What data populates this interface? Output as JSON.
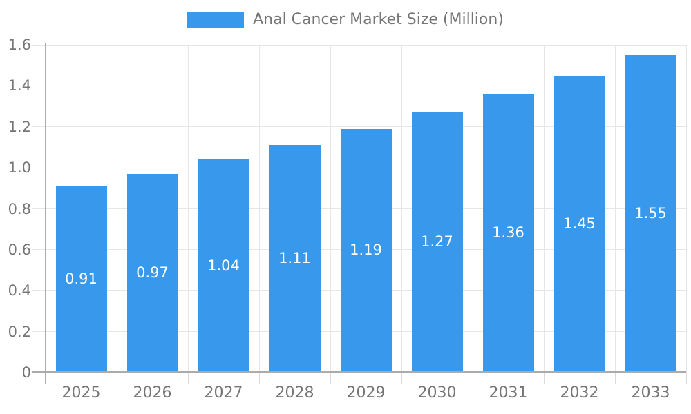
{
  "chart_data": {
    "type": "bar",
    "title": "Anal Cancer Market Size (Million)",
    "categories": [
      "2025",
      "2026",
      "2027",
      "2028",
      "2029",
      "2030",
      "2031",
      "2032",
      "2033"
    ],
    "values": [
      0.91,
      0.97,
      1.04,
      1.11,
      1.19,
      1.27,
      1.36,
      1.45,
      1.55
    ],
    "value_labels": [
      "0.91",
      "0.97",
      "1.04",
      "1.11",
      "1.19",
      "1.27",
      "1.36",
      "1.45",
      "1.55"
    ],
    "xlabel": "",
    "ylabel": "",
    "ylim": [
      0,
      1.6
    ],
    "ytick_labels": [
      "0",
      "0.2",
      "0.4",
      "0.6",
      "0.8",
      "1.0",
      "1.2",
      "1.4",
      "1.6"
    ],
    "grid": true,
    "legend_position": "top",
    "colors": {
      "bar": "#3899EC",
      "bar_value_text": "#ffffff",
      "axis_text": "#757575",
      "legend_text": "#757575",
      "gridline": "#e6e6e6",
      "tick": "#d9d9d9",
      "axis_line": "#ababab"
    }
  }
}
